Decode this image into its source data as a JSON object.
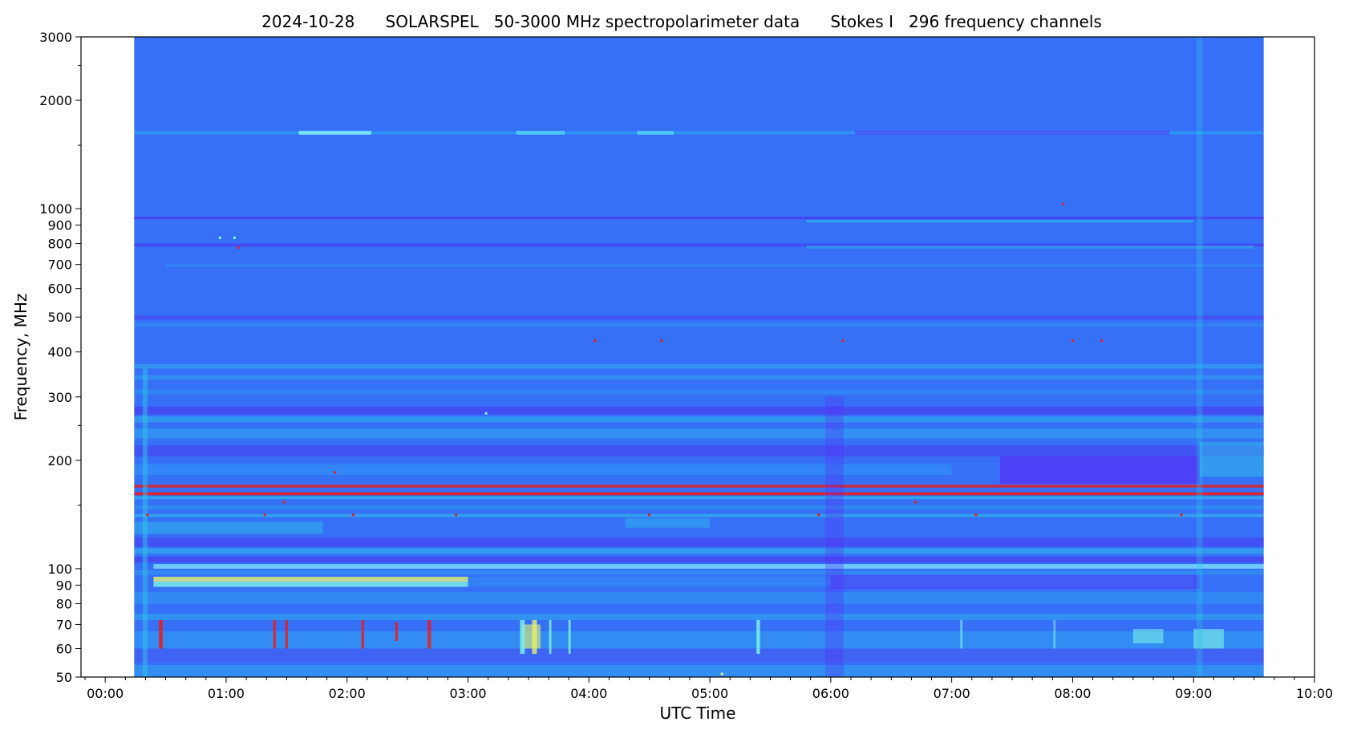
{
  "chart_data": {
    "type": "heatmap",
    "title": "2024-10-28      SOLARSPEL   50-3000 MHz spectropolarimeter data      Stokes I   296 frequency channels",
    "xlabel": "UTC Time",
    "ylabel": "Frequency, MHz",
    "x_range_hours": [
      -0.2,
      10.0
    ],
    "y_range_mhz": [
      50,
      3000
    ],
    "y_scale": "log",
    "grid": false,
    "data_extent_hours": [
      0.24,
      9.58
    ],
    "x_ticks": [
      {
        "value": 0,
        "label": "00:00"
      },
      {
        "value": 1,
        "label": "01:00"
      },
      {
        "value": 2,
        "label": "02:00"
      },
      {
        "value": 3,
        "label": "03:00"
      },
      {
        "value": 4,
        "label": "04:00"
      },
      {
        "value": 5,
        "label": "05:00"
      },
      {
        "value": 6,
        "label": "06:00"
      },
      {
        "value": 7,
        "label": "07:00"
      },
      {
        "value": 8,
        "label": "08:00"
      },
      {
        "value": 9,
        "label": "09:00"
      },
      {
        "value": 10,
        "label": "10:00"
      }
    ],
    "x_minor_ticks": [
      -0.1667,
      0.1667,
      0.3333,
      0.5,
      0.6667,
      0.8333,
      1.1667,
      1.3333,
      1.5,
      1.6667,
      1.8333,
      2.1667,
      2.3333,
      2.5,
      2.6667,
      2.8333,
      3.1667,
      3.3333,
      3.5,
      3.6667,
      3.8333,
      4.1667,
      4.3333,
      4.5,
      4.6667,
      4.8333,
      5.1667,
      5.3333,
      5.5,
      5.6667,
      5.8333,
      6.1667,
      6.3333,
      6.5,
      6.6667,
      6.8333,
      7.1667,
      7.3333,
      7.5,
      7.6667,
      7.8333,
      8.1667,
      8.3333,
      8.5,
      8.6667,
      8.8333,
      9.1667,
      9.3333,
      9.5,
      9.6667,
      9.8333
    ],
    "y_ticks": [
      {
        "value": 50,
        "label": "50"
      },
      {
        "value": 60,
        "label": "60"
      },
      {
        "value": 70,
        "label": "70"
      },
      {
        "value": 80,
        "label": "80"
      },
      {
        "value": 90,
        "label": "90"
      },
      {
        "value": 100,
        "label": "100"
      },
      {
        "value": 200,
        "label": "200"
      },
      {
        "value": 300,
        "label": "300"
      },
      {
        "value": 400,
        "label": "400"
      },
      {
        "value": 500,
        "label": "500"
      },
      {
        "value": 600,
        "label": "600"
      },
      {
        "value": 700,
        "label": "700"
      },
      {
        "value": 800,
        "label": "800"
      },
      {
        "value": 900,
        "label": "900"
      },
      {
        "value": 1000,
        "label": "1000"
      },
      {
        "value": 2000,
        "label": "2000"
      },
      {
        "value": 3000,
        "label": "3000"
      }
    ],
    "y_minor_ticks": [
      150,
      250,
      1500,
      2500
    ],
    "background_color": "#3570f7",
    "colors": {
      "background": "#3570f7",
      "deep": "#5a2cf5",
      "mid": "#4a55f0",
      "cyan": "#2fc6e8",
      "light_cyan": "#7ff5e6",
      "yellow": "#e8f070",
      "red": "#e81d1d"
    },
    "bands": [
      {
        "f1": 1610,
        "f2": 1640,
        "t1": 0.24,
        "t2": 9.58,
        "color": "#2a9ff2",
        "opacity": 0.8
      },
      {
        "f1": 1605,
        "f2": 1645,
        "t1": 1.6,
        "t2": 2.2,
        "color": "#8af2ff",
        "opacity": 0.8
      },
      {
        "f1": 1605,
        "f2": 1645,
        "t1": 3.4,
        "t2": 3.8,
        "color": "#5de0ff",
        "opacity": 0.7
      },
      {
        "f1": 1605,
        "f2": 1645,
        "t1": 4.4,
        "t2": 4.7,
        "color": "#5de0ff",
        "opacity": 0.7
      },
      {
        "f1": 1605,
        "f2": 1645,
        "t1": 6.2,
        "t2": 8.8,
        "color": "#5a2cf5",
        "opacity": 0.5
      },
      {
        "f1": 935,
        "f2": 950,
        "t1": 0.24,
        "t2": 9.58,
        "color": "#4a40f0",
        "opacity": 0.9
      },
      {
        "f1": 915,
        "f2": 930,
        "t1": 5.8,
        "t2": 9.0,
        "color": "#2fc6e8",
        "opacity": 0.6
      },
      {
        "f1": 785,
        "f2": 800,
        "t1": 0.24,
        "t2": 9.58,
        "color": "#4a40f0",
        "opacity": 0.8
      },
      {
        "f1": 775,
        "f2": 790,
        "t1": 5.8,
        "t2": 9.5,
        "color": "#2fc6e8",
        "opacity": 0.45
      },
      {
        "f1": 690,
        "f2": 700,
        "t1": 0.5,
        "t2": 9.58,
        "color": "#2fa0f0",
        "opacity": 0.5
      },
      {
        "f1": 492,
        "f2": 505,
        "t1": 0.24,
        "t2": 9.58,
        "color": "#4a40f0",
        "opacity": 0.6
      },
      {
        "f1": 470,
        "f2": 480,
        "t1": 0.24,
        "t2": 9.58,
        "color": "#2fa0f0",
        "opacity": 0.4
      },
      {
        "f1": 360,
        "f2": 370,
        "t1": 0.24,
        "t2": 9.58,
        "color": "#2fb0f0",
        "opacity": 0.55
      },
      {
        "f1": 335,
        "f2": 345,
        "t1": 0.24,
        "t2": 9.58,
        "color": "#2fb0f0",
        "opacity": 0.45
      },
      {
        "f1": 305,
        "f2": 315,
        "t1": 0.24,
        "t2": 9.58,
        "color": "#2fa0f0",
        "opacity": 0.4
      },
      {
        "f1": 268,
        "f2": 282,
        "t1": 0.24,
        "t2": 9.58,
        "color": "#4a40f0",
        "opacity": 0.7
      },
      {
        "f1": 255,
        "f2": 265,
        "t1": 0.24,
        "t2": 9.58,
        "color": "#2fc6e8",
        "opacity": 0.45
      },
      {
        "f1": 230,
        "f2": 245,
        "t1": 0.24,
        "t2": 9.58,
        "color": "#2fb0f0",
        "opacity": 0.5
      },
      {
        "f1": 205,
        "f2": 220,
        "t1": 0.24,
        "t2": 9.58,
        "color": "#4a40f0",
        "opacity": 0.6
      },
      {
        "f1": 172,
        "f2": 205,
        "t1": 7.4,
        "t2": 9.05,
        "color": "#5a2cf5",
        "opacity": 0.7
      },
      {
        "f1": 182,
        "f2": 195,
        "t1": 0.24,
        "t2": 7.0,
        "color": "#2fb0f0",
        "opacity": 0.35
      },
      {
        "f1": 180,
        "f2": 225,
        "t1": 9.05,
        "t2": 9.58,
        "color": "#2fc6e8",
        "opacity": 0.5
      },
      {
        "f1": 168,
        "f2": 171,
        "t1": 0.24,
        "t2": 9.58,
        "color": "#e81d1d",
        "opacity": 0.85
      },
      {
        "f1": 160,
        "f2": 163,
        "t1": 0.24,
        "t2": 9.58,
        "color": "#e81d1d",
        "opacity": 0.9
      },
      {
        "f1": 156,
        "f2": 159,
        "t1": 0.24,
        "t2": 9.58,
        "color": "#2fc6e8",
        "opacity": 0.6
      },
      {
        "f1": 146,
        "f2": 150,
        "t1": 0.24,
        "t2": 9.58,
        "color": "#2fa0f0",
        "opacity": 0.5
      },
      {
        "f1": 139,
        "f2": 142,
        "t1": 0.24,
        "t2": 9.58,
        "color": "#2fc6e8",
        "opacity": 0.55
      },
      {
        "f1": 125,
        "f2": 135,
        "t1": 0.24,
        "t2": 1.8,
        "color": "#2fc6e8",
        "opacity": 0.45
      },
      {
        "f1": 130,
        "f2": 138,
        "t1": 4.3,
        "t2": 5.0,
        "color": "#2fc6e8",
        "opacity": 0.4
      },
      {
        "f1": 115,
        "f2": 122,
        "t1": 0.24,
        "t2": 9.58,
        "color": "#4a40f0",
        "opacity": 0.6
      },
      {
        "f1": 110,
        "f2": 114,
        "t1": 0.24,
        "t2": 9.58,
        "color": "#2fc6e8",
        "opacity": 0.5
      },
      {
        "f1": 104,
        "f2": 108,
        "t1": 0.24,
        "t2": 9.58,
        "color": "#4a40f0",
        "opacity": 0.7
      },
      {
        "f1": 100,
        "f2": 103,
        "t1": 0.4,
        "t2": 9.58,
        "color": "#8af2ff",
        "opacity": 0.7
      },
      {
        "f1": 96,
        "f2": 99,
        "t1": 0.24,
        "t2": 9.58,
        "color": "#2fa0f0",
        "opacity": 0.5
      },
      {
        "f1": 92,
        "f2": 95,
        "t1": 0.4,
        "t2": 3.0,
        "color": "#e8f070",
        "opacity": 0.8
      },
      {
        "f1": 89,
        "f2": 92,
        "t1": 0.4,
        "t2": 3.0,
        "color": "#7ff5e6",
        "opacity": 0.8
      },
      {
        "f1": 89,
        "f2": 95,
        "t1": 3.0,
        "t2": 9.0,
        "color": "#2fa0f0",
        "opacity": 0.35
      },
      {
        "f1": 88,
        "f2": 96,
        "t1": 6.0,
        "t2": 9.05,
        "color": "#5a2cf5",
        "opacity": 0.45
      },
      {
        "f1": 80,
        "f2": 86,
        "t1": 0.24,
        "t2": 9.58,
        "color": "#2fb0f0",
        "opacity": 0.4
      },
      {
        "f1": 72,
        "f2": 75,
        "t1": 0.24,
        "t2": 9.58,
        "color": "#2fc6e8",
        "opacity": 0.4
      },
      {
        "f1": 60,
        "f2": 67,
        "t1": 0.24,
        "t2": 9.58,
        "color": "#2fb0f0",
        "opacity": 0.45
      },
      {
        "f1": 55,
        "f2": 60,
        "t1": 0.24,
        "t2": 9.58,
        "color": "#4a55f0",
        "opacity": 0.5
      },
      {
        "f1": 50,
        "f2": 54,
        "t1": 0.24,
        "t2": 9.58,
        "color": "#2fc6e8",
        "opacity": 0.35
      },
      {
        "f1": 62,
        "f2": 68,
        "t1": 8.5,
        "t2": 8.75,
        "color": "#7ff5e6",
        "opacity": 0.55
      },
      {
        "f1": 60,
        "f2": 68,
        "t1": 9.0,
        "t2": 9.25,
        "color": "#7ff5e6",
        "opacity": 0.6
      },
      {
        "f1": 60,
        "f2": 70,
        "t1": 3.45,
        "t2": 3.6,
        "color": "#e8f070",
        "opacity": 0.6
      }
    ],
    "vertical_features": [
      {
        "t": 0.33,
        "f1": 50,
        "f2": 360,
        "color": "#2fc6e8",
        "opacity": 0.5,
        "w": 0.04
      },
      {
        "t": 0.46,
        "f1": 60,
        "f2": 72,
        "color": "#e81d1d",
        "opacity": 0.9,
        "w": 0.03
      },
      {
        "t": 1.4,
        "f1": 60,
        "f2": 72,
        "color": "#e81d1d",
        "opacity": 0.9,
        "w": 0.02
      },
      {
        "t": 1.5,
        "f1": 60,
        "f2": 72,
        "color": "#e81d1d",
        "opacity": 0.9,
        "w": 0.02
      },
      {
        "t": 2.13,
        "f1": 60,
        "f2": 72,
        "color": "#e81d1d",
        "opacity": 0.9,
        "w": 0.02
      },
      {
        "t": 2.41,
        "f1": 63,
        "f2": 71,
        "color": "#e81d1d",
        "opacity": 0.9,
        "w": 0.02
      },
      {
        "t": 2.68,
        "f1": 60,
        "f2": 72,
        "color": "#e81d1d",
        "opacity": 0.8,
        "w": 0.03
      },
      {
        "t": 3.45,
        "f1": 58,
        "f2": 72,
        "color": "#7ff5e6",
        "opacity": 0.8,
        "w": 0.04
      },
      {
        "t": 3.55,
        "f1": 58,
        "f2": 72,
        "color": "#e8f070",
        "opacity": 0.8,
        "w": 0.04
      },
      {
        "t": 3.68,
        "f1": 58,
        "f2": 72,
        "color": "#7ff5e6",
        "opacity": 0.8,
        "w": 0.02
      },
      {
        "t": 3.84,
        "f1": 58,
        "f2": 72,
        "color": "#7ff5e6",
        "opacity": 0.8,
        "w": 0.02
      },
      {
        "t": 5.4,
        "f1": 58,
        "f2": 72,
        "color": "#7ff5e6",
        "opacity": 0.8,
        "w": 0.03
      },
      {
        "t": 7.08,
        "f1": 60,
        "f2": 72,
        "color": "#7ff5e6",
        "opacity": 0.6,
        "w": 0.02
      },
      {
        "t": 7.85,
        "f1": 60,
        "f2": 72,
        "color": "#7ff5e6",
        "opacity": 0.5,
        "w": 0.02
      },
      {
        "t": 9.05,
        "f1": 50,
        "f2": 3000,
        "color": "#2fc6e8",
        "opacity": 0.3,
        "w": 0.05
      },
      {
        "t": 6.03,
        "f1": 50,
        "f2": 300,
        "color": "#5a2cf5",
        "opacity": 0.3,
        "w": 0.15
      }
    ],
    "dots": [
      {
        "t": 4.05,
        "f": 430,
        "color": "#e81d1d"
      },
      {
        "t": 4.6,
        "f": 430,
        "color": "#e81d1d"
      },
      {
        "t": 6.1,
        "f": 430,
        "color": "#e81d1d"
      },
      {
        "t": 8.0,
        "f": 430,
        "color": "#e81d1d"
      },
      {
        "t": 8.24,
        "f": 430,
        "color": "#e81d1d"
      },
      {
        "t": 7.92,
        "f": 1030,
        "color": "#e81d1d"
      },
      {
        "t": 1.1,
        "f": 780,
        "color": "#e81d1d"
      },
      {
        "t": 3.15,
        "f": 270,
        "color": "#7ff5e6"
      },
      {
        "t": 0.95,
        "f": 830,
        "color": "#7ff5e6"
      },
      {
        "t": 1.07,
        "f": 830,
        "color": "#7ff5e6"
      },
      {
        "t": 1.32,
        "f": 141,
        "color": "#e81d1d"
      },
      {
        "t": 2.05,
        "f": 141,
        "color": "#e81d1d"
      },
      {
        "t": 2.9,
        "f": 141,
        "color": "#e81d1d"
      },
      {
        "t": 4.5,
        "f": 141,
        "color": "#e81d1d"
      },
      {
        "t": 5.9,
        "f": 141,
        "color": "#e81d1d"
      },
      {
        "t": 7.2,
        "f": 141,
        "color": "#e81d1d"
      },
      {
        "t": 8.9,
        "f": 141,
        "color": "#e81d1d"
      },
      {
        "t": 0.35,
        "f": 141,
        "color": "#e81d1d"
      },
      {
        "t": 1.48,
        "f": 153,
        "color": "#e81d1d"
      },
      {
        "t": 6.7,
        "f": 153,
        "color": "#e81d1d"
      },
      {
        "t": 1.9,
        "f": 185,
        "color": "#e81d1d"
      },
      {
        "t": 5.1,
        "f": 51,
        "color": "#e8f070"
      }
    ]
  }
}
